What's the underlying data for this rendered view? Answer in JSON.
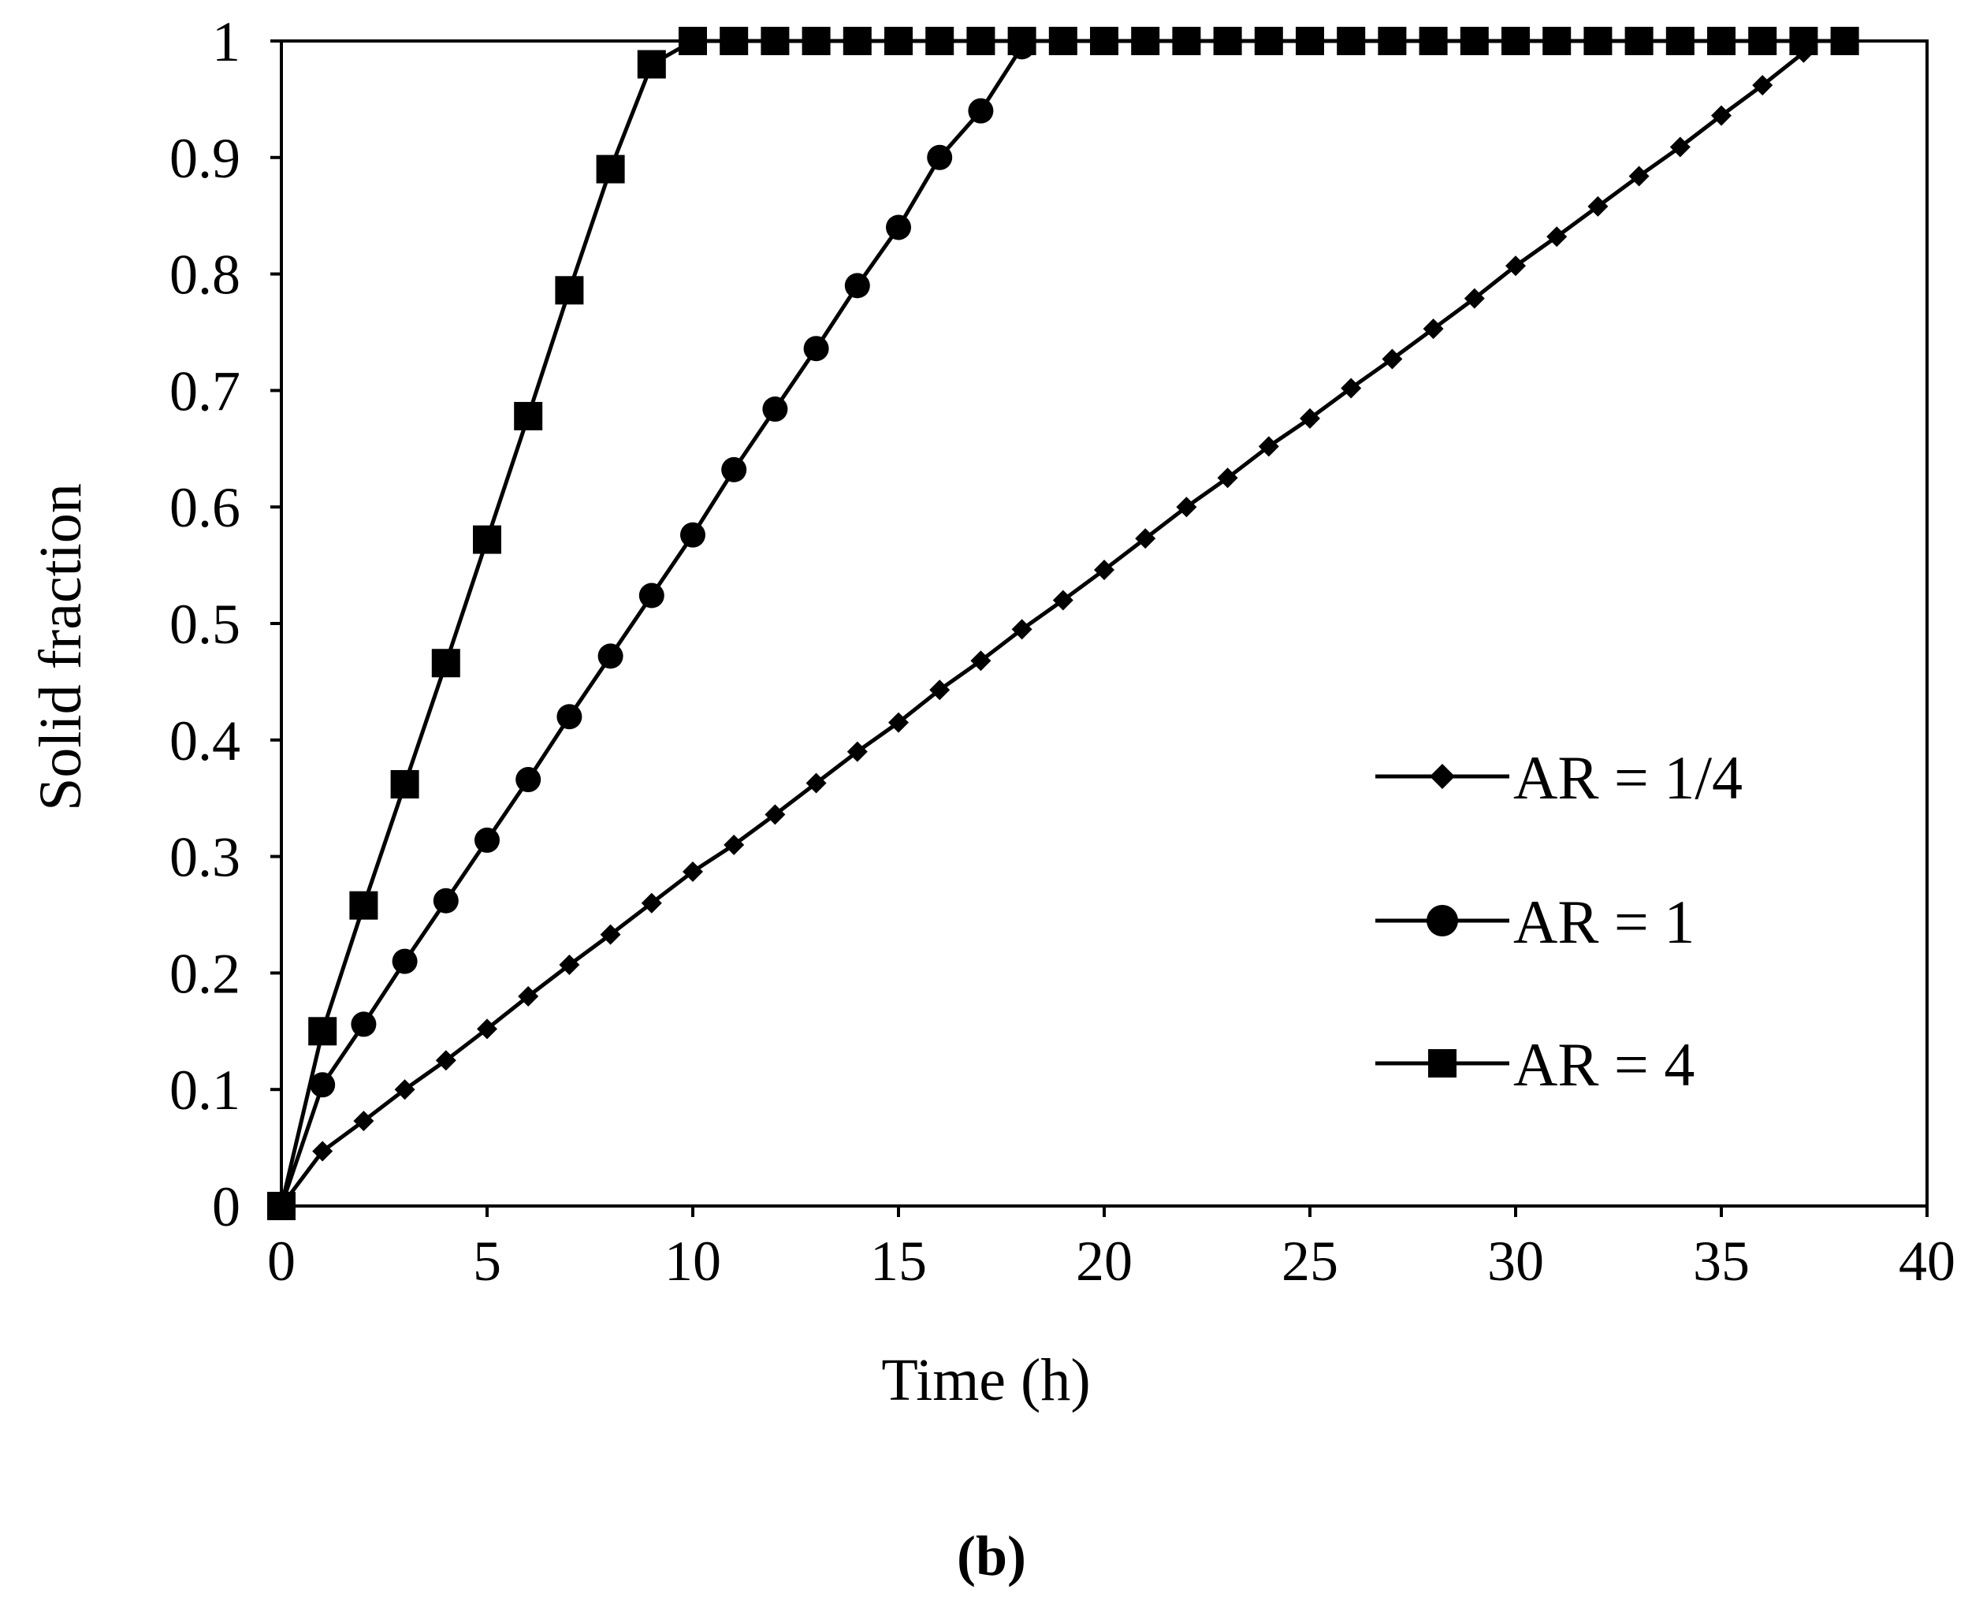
{
  "chart_data": {
    "type": "line",
    "title": "",
    "xlabel": "Time (h)",
    "ylabel": "Solid fraction",
    "xlim": [
      0,
      40
    ],
    "ylim": [
      0,
      1
    ],
    "xticks": [
      "0",
      "5",
      "10",
      "15",
      "20",
      "25",
      "30",
      "35",
      "40"
    ],
    "yticks": [
      "0",
      "0.1",
      "0.2",
      "0.3",
      "0.4",
      "0.5",
      "0.6",
      "0.7",
      "0.8",
      "0.9",
      "1"
    ],
    "grid": false,
    "legend_position": "right",
    "series": [
      {
        "name": "AR = 1/4",
        "marker": "diamond",
        "x": [
          0,
          1,
          2,
          3,
          4,
          5,
          6,
          7,
          8,
          9,
          10,
          11,
          12,
          13,
          14,
          15,
          16,
          17,
          18,
          19,
          20,
          21,
          22,
          23,
          24,
          25,
          26,
          27,
          28,
          29,
          30,
          31,
          32,
          33,
          34,
          35,
          36,
          37
        ],
        "y": [
          0,
          0.047,
          0.073,
          0.1,
          0.125,
          0.152,
          0.18,
          0.207,
          0.233,
          0.26,
          0.287,
          0.31,
          0.336,
          0.363,
          0.39,
          0.415,
          0.443,
          0.468,
          0.495,
          0.52,
          0.546,
          0.573,
          0.6,
          0.625,
          0.652,
          0.676,
          0.702,
          0.727,
          0.753,
          0.779,
          0.807,
          0.832,
          0.858,
          0.884,
          0.909,
          0.936,
          0.962,
          0.99
        ]
      },
      {
        "name": "AR = 1",
        "marker": "circle",
        "x": [
          0,
          1,
          2,
          3,
          4,
          5,
          6,
          7,
          8,
          9,
          10,
          11,
          12,
          13,
          14,
          15,
          16,
          17,
          18
        ],
        "y": [
          0,
          0.104,
          0.156,
          0.21,
          0.262,
          0.314,
          0.366,
          0.42,
          0.472,
          0.524,
          0.576,
          0.632,
          0.684,
          0.736,
          0.79,
          0.84,
          0.9,
          0.94,
          0.995
        ]
      },
      {
        "name": "AR = 4",
        "marker": "square",
        "x": [
          0,
          1,
          2,
          3,
          4,
          5,
          6,
          7,
          8,
          9,
          10,
          11,
          12,
          13,
          14,
          15,
          16,
          17,
          18,
          19,
          20,
          21,
          22,
          23,
          24,
          25,
          26,
          27,
          28,
          29,
          30,
          31,
          32,
          33,
          34,
          35,
          36,
          37,
          38
        ],
        "y": [
          0,
          0.15,
          0.258,
          0.362,
          0.466,
          0.572,
          0.678,
          0.786,
          0.89,
          0.98,
          1,
          1,
          1,
          1,
          1,
          1,
          1,
          1,
          1,
          1,
          1,
          1,
          1,
          1,
          1,
          1,
          1,
          1,
          1,
          1,
          1,
          1,
          1,
          1,
          1,
          1,
          1,
          1,
          1
        ]
      }
    ]
  },
  "panel_label": "(b)"
}
